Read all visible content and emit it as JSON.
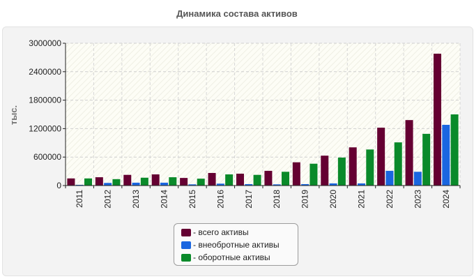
{
  "chart_data": {
    "type": "bar",
    "title": "Динамика состава активов",
    "xlabel": "",
    "ylabel": "тыс.",
    "ylim": [
      0,
      3000000
    ],
    "yticks": [
      0,
      600000,
      1200000,
      1800000,
      2400000,
      3000000
    ],
    "ytick_labels": [
      "0",
      "600000",
      "1200000",
      "1800000",
      "2400000",
      "3000000"
    ],
    "grid": true,
    "legend_position": "bottom-center",
    "categories": [
      "2011",
      "2012",
      "2013",
      "2014",
      "2015",
      "2016",
      "2017",
      "2018",
      "2019",
      "2020",
      "2021",
      "2022",
      "2023",
      "2024"
    ],
    "series": [
      {
        "name": "всего активы",
        "legend_label": "- всего активы",
        "color": "#650032",
        "values": [
          150000,
          175000,
          225000,
          235000,
          160000,
          265000,
          250000,
          310000,
          490000,
          630000,
          805000,
          1220000,
          1380000,
          2780000
        ]
      },
      {
        "name": "внеобротные активы",
        "legend_label": "- внеобротные активы",
        "color": "#1a66e0",
        "values": [
          15000,
          55000,
          60000,
          60000,
          25000,
          40000,
          30000,
          25000,
          30000,
          45000,
          45000,
          310000,
          290000,
          1280000
        ]
      },
      {
        "name": "оборотные активы",
        "legend_label": "- оборотные активы",
        "color": "#0a8a2a",
        "values": [
          150000,
          135000,
          165000,
          175000,
          145000,
          235000,
          225000,
          290000,
          460000,
          590000,
          760000,
          910000,
          1090000,
          1500000
        ]
      }
    ]
  }
}
